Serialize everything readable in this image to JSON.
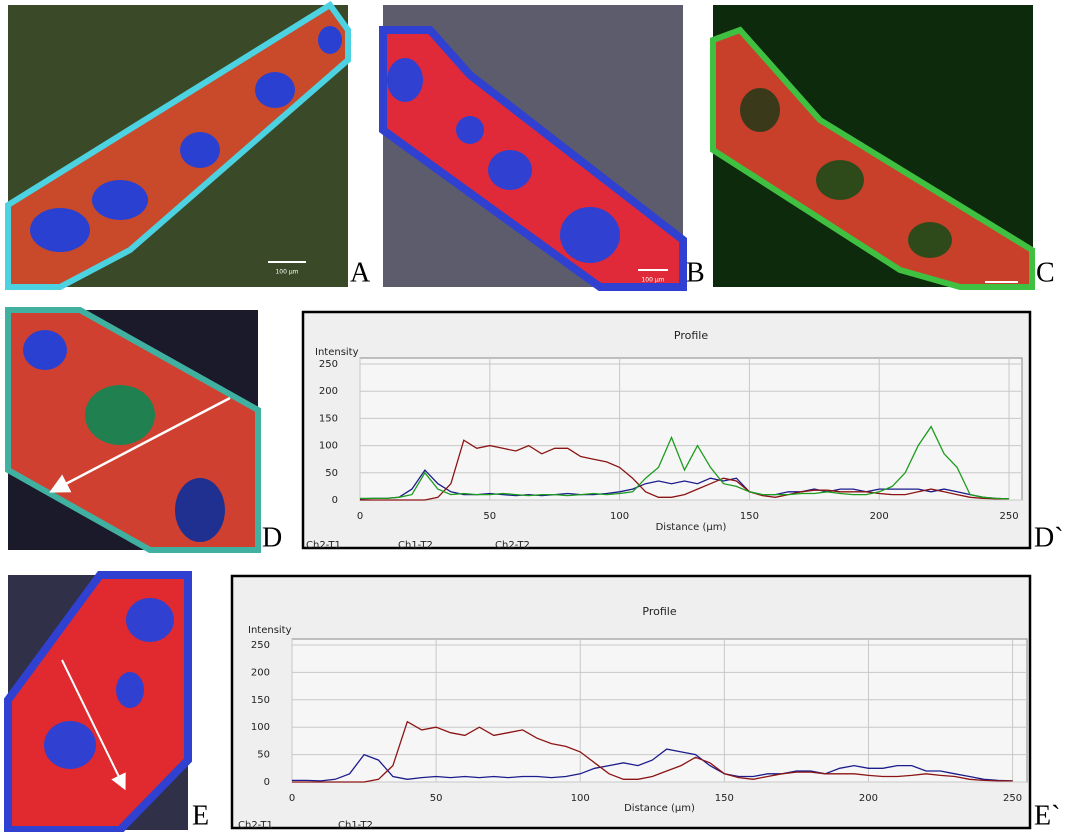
{
  "panels": {
    "A": {
      "label": "A",
      "scale": "100 µm"
    },
    "B": {
      "label": "B",
      "scale": "100 µm"
    },
    "C": {
      "label": "C"
    },
    "D": {
      "label": "D"
    },
    "E": {
      "label": "E"
    }
  },
  "chart_data": [
    {
      "type": "line",
      "panel_label": "D`",
      "title": "Profile",
      "y_label": "Intensity",
      "x_label": "Distance (µm)",
      "xlim": [
        0,
        255
      ],
      "ylim": [
        0,
        250
      ],
      "xticks": [
        0,
        50,
        100,
        150,
        200,
        250
      ],
      "yticks": [
        0,
        50,
        100,
        150,
        200,
        250
      ],
      "grid": true,
      "x": [
        0,
        5,
        10,
        15,
        20,
        25,
        30,
        35,
        40,
        45,
        50,
        55,
        60,
        65,
        70,
        75,
        80,
        85,
        90,
        95,
        100,
        105,
        110,
        115,
        120,
        125,
        130,
        135,
        140,
        145,
        150,
        155,
        160,
        165,
        170,
        175,
        180,
        185,
        190,
        195,
        200,
        205,
        210,
        215,
        220,
        225,
        230,
        235,
        240,
        245,
        250
      ],
      "series": [
        {
          "name": "Ch2-T1",
          "color": "#1c1c8c",
          "values": [
            2,
            3,
            3,
            5,
            20,
            55,
            30,
            15,
            10,
            10,
            12,
            10,
            8,
            10,
            8,
            10,
            12,
            10,
            10,
            12,
            15,
            20,
            30,
            35,
            30,
            35,
            30,
            40,
            35,
            40,
            15,
            10,
            10,
            15,
            15,
            20,
            15,
            20,
            20,
            15,
            20,
            20,
            20,
            20,
            15,
            20,
            15,
            10,
            5,
            3,
            2
          ]
        },
        {
          "name": "Ch1-T2",
          "color": "#8c1414",
          "values": [
            0,
            0,
            0,
            0,
            0,
            0,
            5,
            30,
            110,
            95,
            100,
            95,
            90,
            100,
            85,
            95,
            95,
            80,
            75,
            70,
            60,
            40,
            15,
            5,
            5,
            10,
            20,
            30,
            40,
            35,
            15,
            8,
            5,
            10,
            15,
            18,
            18,
            15,
            15,
            15,
            12,
            10,
            10,
            15,
            20,
            15,
            10,
            5,
            3,
            2,
            2
          ]
        },
        {
          "name": "Ch2-T2",
          "color": "#1c9c1c",
          "values": [
            3,
            3,
            3,
            5,
            10,
            50,
            20,
            10,
            12,
            10,
            10,
            12,
            10,
            8,
            10,
            10,
            8,
            10,
            12,
            10,
            12,
            15,
            40,
            60,
            115,
            55,
            100,
            60,
            30,
            25,
            15,
            10,
            10,
            10,
            12,
            12,
            15,
            12,
            10,
            10,
            15,
            25,
            50,
            100,
            135,
            85,
            60,
            10,
            5,
            3,
            2
          ]
        }
      ]
    },
    {
      "type": "line",
      "panel_label": "E`",
      "title": "Profile",
      "y_label": "Intensity",
      "x_label": "Distance (µm)",
      "xlim": [
        0,
        255
      ],
      "ylim": [
        0,
        250
      ],
      "xticks": [
        0,
        50,
        100,
        150,
        200,
        250
      ],
      "yticks": [
        0,
        50,
        100,
        150,
        200,
        250
      ],
      "grid": true,
      "x": [
        0,
        5,
        10,
        15,
        20,
        25,
        30,
        35,
        40,
        45,
        50,
        55,
        60,
        65,
        70,
        75,
        80,
        85,
        90,
        95,
        100,
        105,
        110,
        115,
        120,
        125,
        130,
        135,
        140,
        145,
        150,
        155,
        160,
        165,
        170,
        175,
        180,
        185,
        190,
        195,
        200,
        205,
        210,
        215,
        220,
        225,
        230,
        235,
        240,
        245,
        250
      ],
      "series": [
        {
          "name": "Ch2-T1",
          "color": "#1c1c8c",
          "values": [
            3,
            3,
            2,
            5,
            15,
            50,
            40,
            10,
            5,
            8,
            10,
            8,
            10,
            8,
            10,
            8,
            10,
            10,
            8,
            10,
            15,
            25,
            30,
            35,
            30,
            40,
            60,
            55,
            50,
            30,
            15,
            10,
            10,
            15,
            15,
            20,
            20,
            15,
            25,
            30,
            25,
            25,
            30,
            30,
            20,
            20,
            15,
            10,
            5,
            3,
            2
          ]
        },
        {
          "name": "Ch1-T2",
          "color": "#8c1414",
          "values": [
            0,
            0,
            0,
            0,
            0,
            0,
            5,
            30,
            110,
            95,
            100,
            90,
            85,
            100,
            85,
            90,
            95,
            80,
            70,
            65,
            55,
            35,
            15,
            5,
            5,
            10,
            20,
            30,
            45,
            35,
            15,
            8,
            5,
            10,
            15,
            18,
            18,
            15,
            15,
            15,
            12,
            10,
            10,
            12,
            15,
            12,
            10,
            5,
            3,
            2,
            2
          ]
        }
      ]
    }
  ]
}
